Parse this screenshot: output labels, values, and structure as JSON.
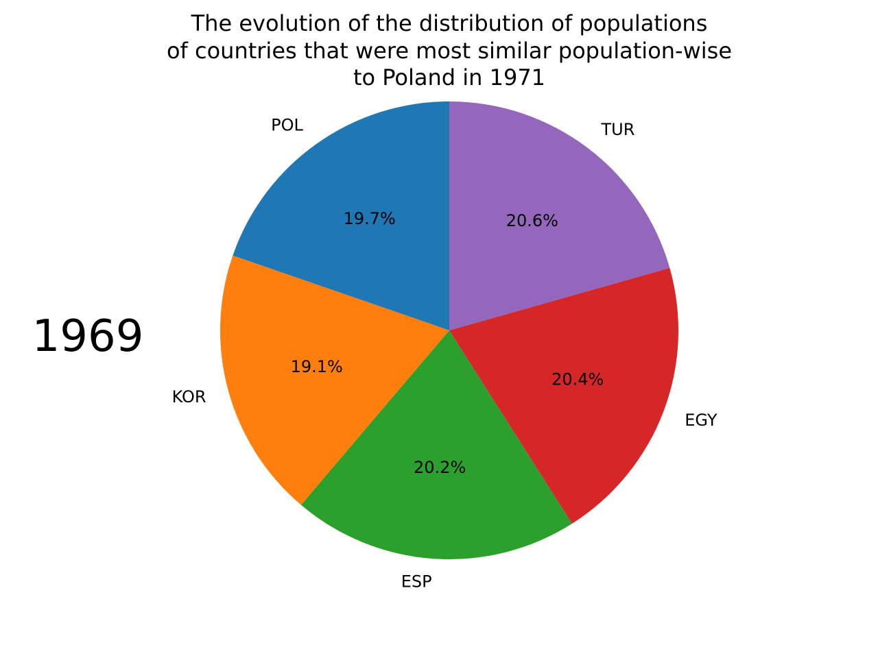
{
  "chart_data": {
    "type": "pie",
    "title_lines": [
      "The evolution of the distribution of populations",
      "of countries that were most similar population-wise",
      "to Poland in 1971"
    ],
    "year": "1969",
    "start_angle_deg": 90,
    "direction": "counterclockwise",
    "slices": [
      {
        "label": "POL",
        "value": 19.7,
        "pct_label": "19.7%",
        "color": "#1f77b4"
      },
      {
        "label": "KOR",
        "value": 19.1,
        "pct_label": "19.1%",
        "color": "#ff7f0e"
      },
      {
        "label": "ESP",
        "value": 20.2,
        "pct_label": "20.2%",
        "color": "#2ca02c"
      },
      {
        "label": "EGY",
        "value": 20.4,
        "pct_label": "20.4%",
        "color": "#d62728"
      },
      {
        "label": "TUR",
        "value": 20.6,
        "pct_label": "20.6%",
        "color": "#9467bd"
      }
    ]
  }
}
